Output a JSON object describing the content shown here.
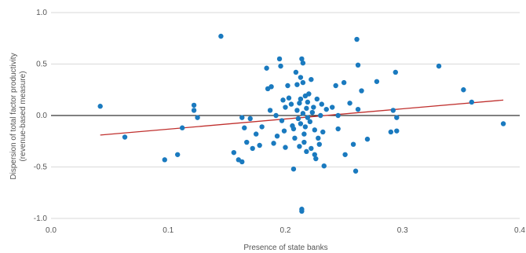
{
  "chart_data": {
    "type": "scatter",
    "title": "",
    "xlabel": "Presence of state banks",
    "ylabel_lines": [
      "Dispersion of total factor productivity",
      "(revenue-based measure)"
    ],
    "xlim": [
      0.0,
      0.4
    ],
    "ylim": [
      -1.0,
      1.0
    ],
    "x_ticks": [
      "0.0",
      "0.1",
      "0.2",
      "0.3",
      "0.4"
    ],
    "y_ticks": [
      "1.0",
      "0.5",
      "0.0",
      "-0.5",
      "-1.0"
    ],
    "x_tick_values": [
      0.0,
      0.1,
      0.2,
      0.3,
      0.4
    ],
    "y_tick_values": [
      1.0,
      0.5,
      0.0,
      -0.5,
      -1.0
    ],
    "grid": "horizontal",
    "point_color": "#1a7abf",
    "trend_color": "#c0302e",
    "trendline": {
      "x": [
        0.042,
        0.386
      ],
      "y": [
        -0.19,
        0.15
      ]
    },
    "points": [
      [
        0.042,
        0.09
      ],
      [
        0.063,
        -0.21
      ],
      [
        0.097,
        -0.43
      ],
      [
        0.108,
        -0.38
      ],
      [
        0.112,
        -0.12
      ],
      [
        0.122,
        0.1
      ],
      [
        0.122,
        0.05
      ],
      [
        0.125,
        -0.02
      ],
      [
        0.145,
        0.77
      ],
      [
        0.156,
        -0.36
      ],
      [
        0.16,
        -0.43
      ],
      [
        0.163,
        -0.45
      ],
      [
        0.163,
        -0.02
      ],
      [
        0.165,
        -0.12
      ],
      [
        0.167,
        -0.26
      ],
      [
        0.17,
        -0.03
      ],
      [
        0.172,
        -0.32
      ],
      [
        0.175,
        -0.18
      ],
      [
        0.178,
        -0.29
      ],
      [
        0.18,
        -0.11
      ],
      [
        0.184,
        0.46
      ],
      [
        0.185,
        0.26
      ],
      [
        0.187,
        0.05
      ],
      [
        0.188,
        0.28
      ],
      [
        0.19,
        -0.27
      ],
      [
        0.192,
        0.0
      ],
      [
        0.193,
        -0.2
      ],
      [
        0.195,
        0.55
      ],
      [
        0.196,
        0.48
      ],
      [
        0.197,
        -0.05
      ],
      [
        0.198,
        0.15
      ],
      [
        0.199,
        -0.15
      ],
      [
        0.2,
        -0.31
      ],
      [
        0.2,
        0.08
      ],
      [
        0.202,
        0.29
      ],
      [
        0.203,
        0.17
      ],
      [
        0.205,
        0.11
      ],
      [
        0.206,
        -0.1
      ],
      [
        0.207,
        -0.52
      ],
      [
        0.207,
        -0.13
      ],
      [
        0.208,
        -0.22
      ],
      [
        0.209,
        0.42
      ],
      [
        0.21,
        0.3
      ],
      [
        0.21,
        0.05
      ],
      [
        0.211,
        -0.03
      ],
      [
        0.212,
        0.12
      ],
      [
        0.212,
        -0.3
      ],
      [
        0.213,
        0.37
      ],
      [
        0.213,
        0.16
      ],
      [
        0.213,
        -0.08
      ],
      [
        0.214,
        0.55
      ],
      [
        0.214,
        -0.91
      ],
      [
        0.214,
        -0.93
      ],
      [
        0.215,
        0.51
      ],
      [
        0.215,
        0.32
      ],
      [
        0.215,
        0.02
      ],
      [
        0.216,
        -0.18
      ],
      [
        0.216,
        -0.26
      ],
      [
        0.217,
        0.19
      ],
      [
        0.217,
        -0.11
      ],
      [
        0.218,
        0.07
      ],
      [
        0.218,
        -0.35
      ],
      [
        0.219,
        0.13
      ],
      [
        0.219,
        -0.02
      ],
      [
        0.22,
        0.21
      ],
      [
        0.221,
        -0.06
      ],
      [
        0.222,
        0.35
      ],
      [
        0.222,
        -0.32
      ],
      [
        0.223,
        0.03
      ],
      [
        0.224,
        0.08
      ],
      [
        0.225,
        -0.14
      ],
      [
        0.225,
        -0.38
      ],
      [
        0.226,
        -0.42
      ],
      [
        0.227,
        0.16
      ],
      [
        0.228,
        -0.22
      ],
      [
        0.229,
        -0.28
      ],
      [
        0.23,
        0.0
      ],
      [
        0.231,
        0.11
      ],
      [
        0.232,
        -0.16
      ],
      [
        0.233,
        -0.49
      ],
      [
        0.235,
        0.06
      ],
      [
        0.24,
        0.08
      ],
      [
        0.243,
        0.29
      ],
      [
        0.245,
        -0.13
      ],
      [
        0.245,
        0.0
      ],
      [
        0.25,
        0.32
      ],
      [
        0.251,
        -0.38
      ],
      [
        0.255,
        0.12
      ],
      [
        0.258,
        -0.28
      ],
      [
        0.26,
        -0.54
      ],
      [
        0.261,
        0.74
      ],
      [
        0.262,
        0.49
      ],
      [
        0.262,
        0.06
      ],
      [
        0.265,
        0.24
      ],
      [
        0.27,
        -0.23
      ],
      [
        0.278,
        0.33
      ],
      [
        0.29,
        -0.16
      ],
      [
        0.292,
        0.05
      ],
      [
        0.294,
        0.42
      ],
      [
        0.295,
        -0.15
      ],
      [
        0.295,
        -0.02
      ],
      [
        0.331,
        0.48
      ],
      [
        0.352,
        0.25
      ],
      [
        0.359,
        0.13
      ],
      [
        0.386,
        -0.08
      ]
    ]
  }
}
